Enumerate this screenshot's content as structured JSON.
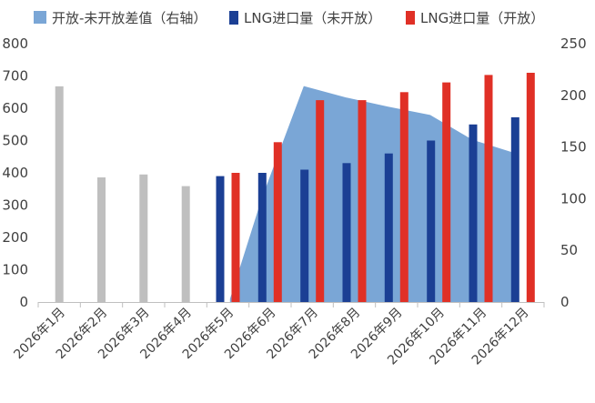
{
  "chart_data": {
    "type": "bar",
    "categories": [
      "2026年1月",
      "2026年2月",
      "2026年3月",
      "2026年4月",
      "2026年5月",
      "2026年6月",
      "2026年7月",
      "2026年8月",
      "2026年9月",
      "2026年10月",
      "2026年11月",
      "2026年12月"
    ],
    "series": [
      {
        "name": "开放-未开放差值（右轴）",
        "kind": "area",
        "axis": "right",
        "color": "#7aa6d6",
        "values": [
          null,
          null,
          null,
          null,
          3,
          100,
          209,
          198,
          189,
          181,
          157,
          143
        ]
      },
      {
        "name": "LNG进口量（未开放）",
        "kind": "bar",
        "axis": "left",
        "color": "#1b3f94",
        "values": [
          null,
          null,
          null,
          null,
          390,
          400,
          410,
          430,
          460,
          500,
          550,
          572
        ]
      },
      {
        "name": "LNG进口量（开放）",
        "kind": "bar",
        "axis": "left",
        "color": "#e03026",
        "values": [
          null,
          null,
          null,
          null,
          400,
          495,
          625,
          625,
          650,
          680,
          703,
          710
        ]
      },
      {
        "name": "",
        "kind": "bar",
        "axis": "left",
        "color": "#bfbfbf",
        "values": [
          668,
          386,
          395,
          359,
          null,
          null,
          null,
          null,
          null,
          null,
          null,
          null
        ]
      }
    ],
    "left_axis": {
      "min": 0,
      "max": 800,
      "ticks": [
        0,
        100,
        200,
        300,
        400,
        500,
        600,
        700,
        800
      ]
    },
    "right_axis": {
      "min": 0,
      "max": 250,
      "ticks": [
        0,
        50,
        100,
        150,
        200,
        250
      ]
    },
    "grid": false,
    "legend_position": "top"
  }
}
